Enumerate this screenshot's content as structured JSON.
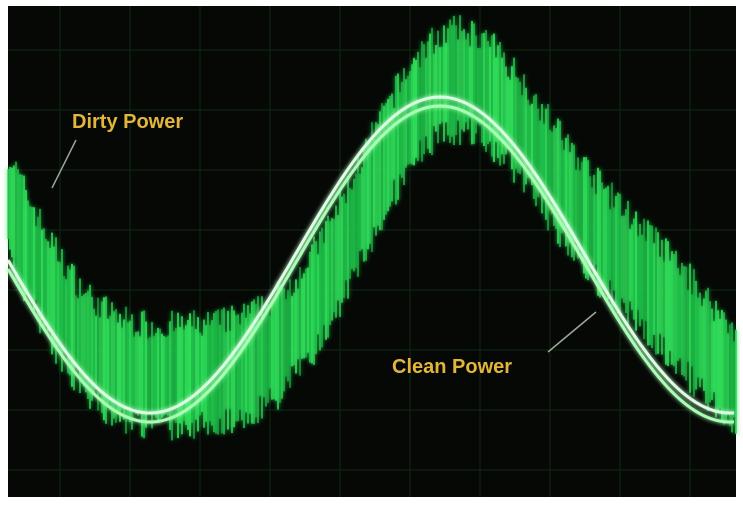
{
  "annotations": {
    "dirty": "Dirty Power",
    "clean": "Clean Power"
  }
}
